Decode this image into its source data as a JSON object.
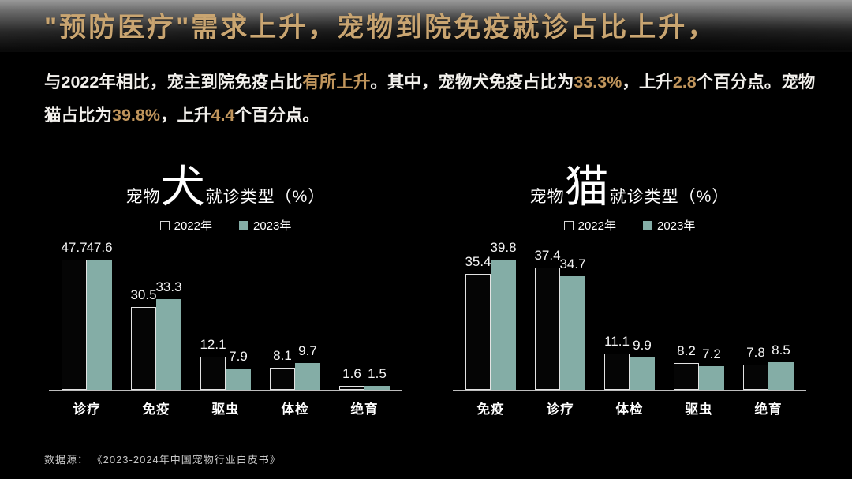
{
  "header": {
    "title": "\"预防医疗\"需求上升，宠物到院免疫就诊占比上升，"
  },
  "subtitle": {
    "segments": [
      {
        "text": "与2022年相比，宠主到院免疫占比",
        "highlight": false
      },
      {
        "text": "有所上升",
        "highlight": true
      },
      {
        "text": "。其中，宠物犬免疫占比为",
        "highlight": false
      },
      {
        "text": "33.3%",
        "highlight": true
      },
      {
        "text": "，上升",
        "highlight": false
      },
      {
        "text": "2.8",
        "highlight": true
      },
      {
        "text": "个百分点。宠物猫占比为",
        "highlight": false
      },
      {
        "text": "39.8%",
        "highlight": true
      },
      {
        "text": "，上升",
        "highlight": false
      },
      {
        "text": "4.4",
        "highlight": true
      },
      {
        "text": "个百分点。",
        "highlight": false
      }
    ]
  },
  "chart_data": [
    {
      "type": "bar",
      "title": "宠物犬就诊类型（%）",
      "title_prefix": "宠物",
      "title_animal": "犬",
      "title_suffix": "就诊类型（%）",
      "categories": [
        "诊疗",
        "免疫",
        "驱虫",
        "体检",
        "绝育"
      ],
      "series": [
        {
          "name": "2022年",
          "values": [
            47.7,
            30.5,
            12.1,
            8.1,
            1.6
          ]
        },
        {
          "name": "2023年",
          "values": [
            47.6,
            33.3,
            7.9,
            9.7,
            1.5
          ]
        }
      ],
      "ylim": [
        0,
        50
      ],
      "grid": false,
      "legend_position": "top"
    },
    {
      "type": "bar",
      "title": "宠物猫就诊类型（%）",
      "title_prefix": "宠物",
      "title_animal": "猫",
      "title_suffix": "就诊类型（%）",
      "categories": [
        "免疫",
        "诊疗",
        "体检",
        "驱虫",
        "绝育"
      ],
      "series": [
        {
          "name": "2022年",
          "values": [
            35.4,
            37.4,
            11.1,
            8.2,
            7.8
          ]
        },
        {
          "name": "2023年",
          "values": [
            39.8,
            34.7,
            9.9,
            7.2,
            8.5
          ]
        }
      ],
      "ylim": [
        0,
        43
      ],
      "grid": false,
      "legend_position": "top"
    }
  ],
  "source": {
    "label": "数据源： 《2023-2024年中国宠物行业白皮书》"
  },
  "colors": {
    "background": "#000000",
    "header_gray": "#9a9a9a",
    "title_gold": "#c9a571",
    "highlight_gold": "#c0955c",
    "bar_2022_fill": "#050505",
    "bar_2022_outline": "#e3e3e3",
    "bar_2023_teal": "#84ada6",
    "text_white": "#f2f0ec",
    "source_gray": "#c6c6c6"
  }
}
